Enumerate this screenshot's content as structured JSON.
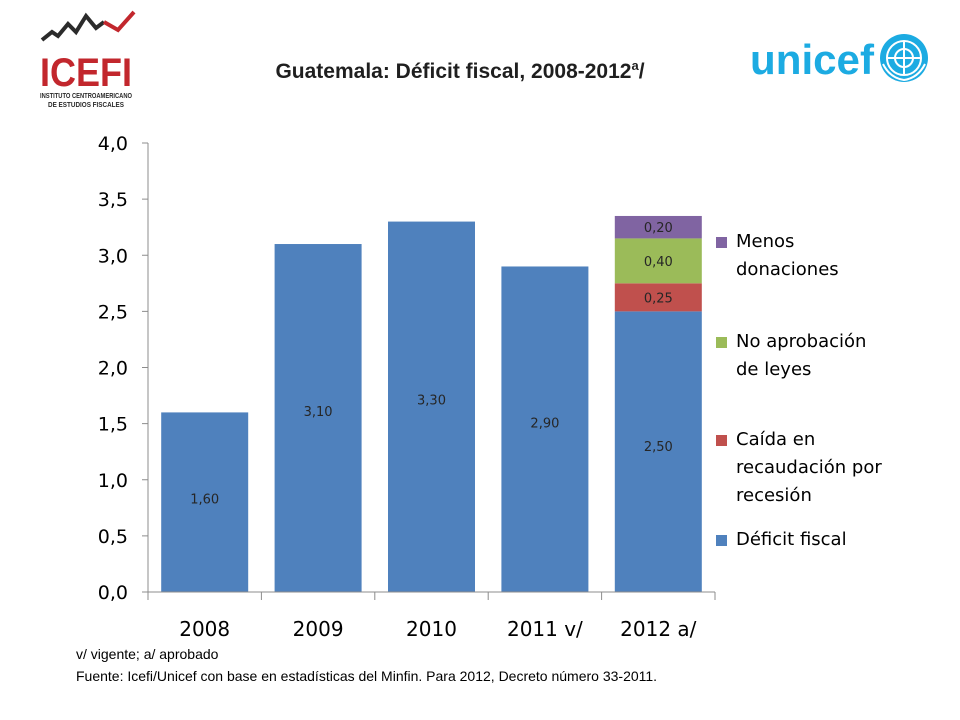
{
  "header": {
    "title": "Guatemala: Déficit fiscal, 2008-2012",
    "title_sup": "a",
    "title_suffix": "/",
    "logo_left_text": "ICEFI",
    "logo_left_subtext_1": "INSTITUTO CENTROAMERICANO",
    "logo_left_subtext_2": "DE ESTUDIOS FISCALES",
    "logo_right_text": "unicef"
  },
  "colors": {
    "deficit": "#4f81bd",
    "recaudacion": "#c0504d",
    "leyes": "#9bbb59",
    "donaciones": "#8064a2",
    "icefi_red": "#c2272d",
    "unicef_blue": "#1cabe2"
  },
  "chart_data": {
    "type": "bar",
    "stacked": true,
    "categories": [
      "2008",
      "2009",
      "2010",
      "2011 v/",
      "2012 a/"
    ],
    "ylim": [
      0,
      4.0
    ],
    "yticks": [
      "0,0",
      "0,5",
      "1,0",
      "1,5",
      "2,0",
      "2,5",
      "3,0",
      "3,5",
      "4,0"
    ],
    "series": [
      {
        "name": "Déficit  fiscal",
        "color": "#4f81bd",
        "values": [
          1.6,
          3.1,
          3.3,
          2.9,
          2.5
        ],
        "labels": [
          "1,60",
          "3,10",
          "3,30",
          "2,90",
          "2,50"
        ]
      },
      {
        "name": "Caída en recaudación por recesión",
        "color": "#c0504d",
        "values": [
          null,
          null,
          null,
          null,
          0.25
        ],
        "labels": [
          null,
          null,
          null,
          null,
          "0,25"
        ]
      },
      {
        "name": "No aprobación de leyes",
        "color": "#9bbb59",
        "values": [
          null,
          null,
          null,
          null,
          0.4
        ],
        "labels": [
          null,
          null,
          null,
          null,
          "0,40"
        ]
      },
      {
        "name": "Menos donaciones",
        "color": "#8064a2",
        "values": [
          null,
          null,
          null,
          null,
          0.2
        ],
        "labels": [
          null,
          null,
          null,
          null,
          "0,20"
        ]
      }
    ],
    "legend_position": "right"
  },
  "legend": {
    "items": [
      {
        "lines": [
          "Menos",
          "donaciones"
        ],
        "color": "#8064a2"
      },
      {
        "lines": [
          "No aprobación",
          "de leyes"
        ],
        "color": "#9bbb59"
      },
      {
        "lines": [
          "Caída en",
          "recaudación por",
          "recesión"
        ],
        "color": "#c0504d"
      },
      {
        "lines": [
          "Déficit  fiscal"
        ],
        "color": "#4f81bd"
      }
    ]
  },
  "notes": {
    "line1": "v/ vigente; a/ aprobado",
    "line2": "Fuente: Icefi/Unicef con base en estadísticas del Minfin. Para 2012, Decreto número 33-2011."
  }
}
